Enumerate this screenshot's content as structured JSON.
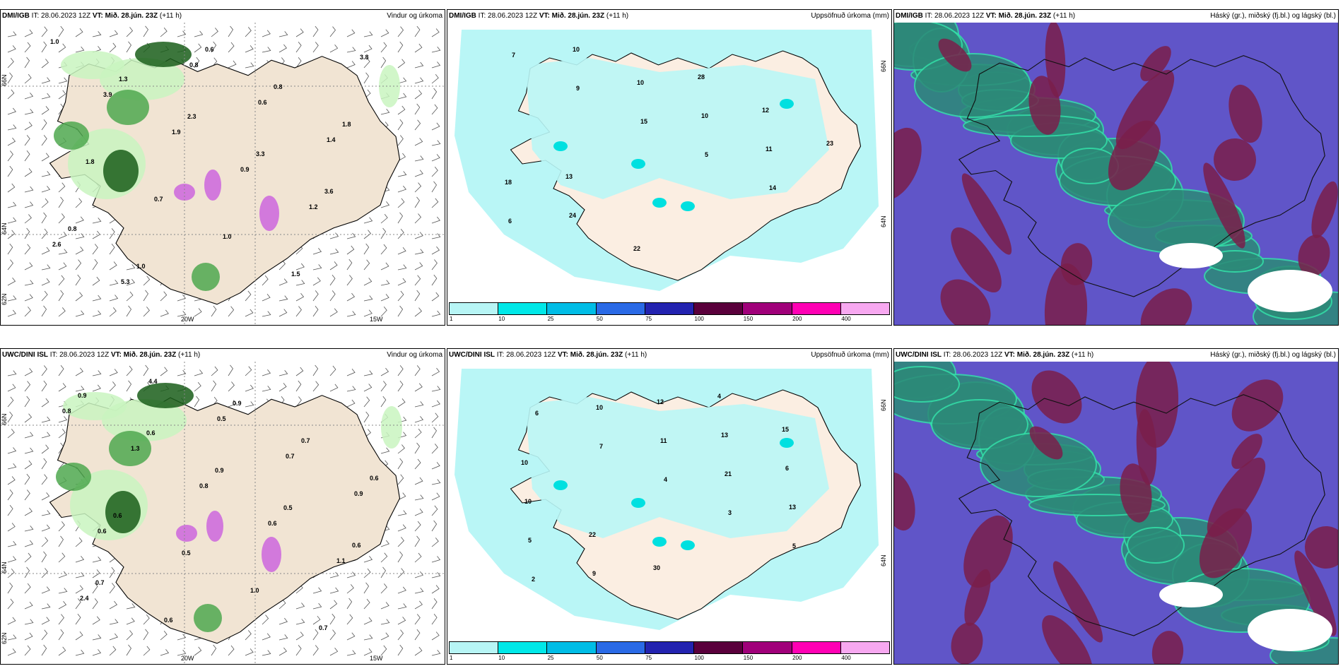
{
  "colors": {
    "land": "#f1e4d3",
    "precip_light": "#c9f5c0",
    "precip_mid": "#4fa84f",
    "precip_dark": "#1a5e1a",
    "precip_heavy": "#cc66dd",
    "accum_low": "#b9f6f6",
    "cloud_high": "#7a1f4a",
    "cloud_mid": "#2c8a78",
    "cloud_low": "#6055c8"
  },
  "panels": [
    {
      "model": "DMI/IGB",
      "it_label": "IT:",
      "it_value": "28.06.2023 12Z",
      "vt_label": "VT:",
      "vt_value": "Mið. 28.jún. 23Z",
      "lead": "(+11 h)",
      "title": "Vindur og úrkoma",
      "lat_labels": [
        "66N",
        "64N",
        "62N"
      ],
      "lon_labels": [
        "20W",
        "15W"
      ],
      "values": [
        "1.0",
        "1.3",
        "2.3",
        "3.3",
        "3.6",
        "0.8",
        "1.0",
        "0.6",
        "0.8",
        "1.8",
        "1.8",
        "0.7",
        "1.0",
        "1.5",
        "3.8",
        "3.9",
        "1.9",
        "0.9",
        "1.2",
        "2.6",
        "5.3",
        "0.8",
        "0.6",
        "1.4"
      ]
    },
    {
      "model": "DMI/IGB",
      "it_label": "IT:",
      "it_value": "28.06.2023 12Z",
      "vt_label": "VT:",
      "vt_value": "Mið. 28.jún. 23Z",
      "lead": "(+11 h)",
      "title": "Uppsöfnuð úrkoma (mm)",
      "lat_labels": [
        "66N",
        "64N"
      ],
      "values": [
        "7",
        "9",
        "15",
        "5",
        "14",
        "6",
        "10",
        "10",
        "10",
        "11",
        "18",
        "24",
        "22",
        "28",
        "12",
        "23",
        "13"
      ]
    },
    {
      "model": "DMI/IGB",
      "it_label": "IT:",
      "it_value": "28.06.2023 12Z",
      "vt_label": "VT:",
      "vt_value": "Mið. 28.jún. 23Z",
      "lead": "(+11 h)",
      "title": "Háský (gr.), miðský (fj.bl.) og lágský (bl.)"
    },
    {
      "model": "UWC/DINI ISL",
      "it_label": "IT:",
      "it_value": "28.06.2023 12Z",
      "vt_label": "VT:",
      "vt_value": "Mið. 28.jún. 23Z",
      "lead": "(+11 h)",
      "title": "Vindur og úrkoma",
      "lat_labels": [
        "66N",
        "64N",
        "62N"
      ],
      "lon_labels": [
        "20W",
        "15W"
      ],
      "values": [
        "0.9",
        "0.6",
        "0.9",
        "0.5",
        "0.6",
        "0.7",
        "0.6",
        "0.9",
        "0.7",
        "0.6",
        "0.6",
        "0.5",
        "1.0",
        "0.7",
        "0.8",
        "1.3",
        "0.8",
        "0.6",
        "1.1",
        "2.4",
        "4.4",
        "0.5",
        "0.7",
        "0.9",
        "0.6"
      ]
    },
    {
      "model": "UWC/DINI ISL",
      "it_label": "IT:",
      "it_value": "28.06.2023 12Z",
      "vt_label": "VT:",
      "vt_value": "Mið. 28.jún. 23Z",
      "lead": "(+11 h)",
      "title": "Uppsöfnuð úrkoma (mm)",
      "lat_labels": [
        "66N",
        "64N"
      ],
      "values": [
        "6",
        "7",
        "4",
        "3",
        "5",
        "2",
        "10",
        "11",
        "21",
        "13",
        "5",
        "9",
        "12",
        "13",
        "6",
        "10",
        "22",
        "30",
        "4",
        "15",
        "10"
      ]
    },
    {
      "model": "UWC/DINI ISL",
      "it_label": "IT:",
      "it_value": "28.06.2023 12Z",
      "vt_label": "VT:",
      "vt_value": "Mið. 28.jún. 23Z",
      "lead": "(+11 h)",
      "title": "Háský (gr.), miðský (fj.bl.) og lágský (bl.)"
    }
  ],
  "legend": {
    "ticks": [
      "1",
      "10",
      "25",
      "50",
      "75",
      "100",
      "150",
      "200",
      "400"
    ],
    "colors": [
      "#b7f5f5",
      "#00e8e8",
      "#00bde6",
      "#2a6ae6",
      "#2323b0",
      "#5a003c",
      "#a0007a",
      "#ff00b4",
      "#f7a8f0"
    ]
  }
}
